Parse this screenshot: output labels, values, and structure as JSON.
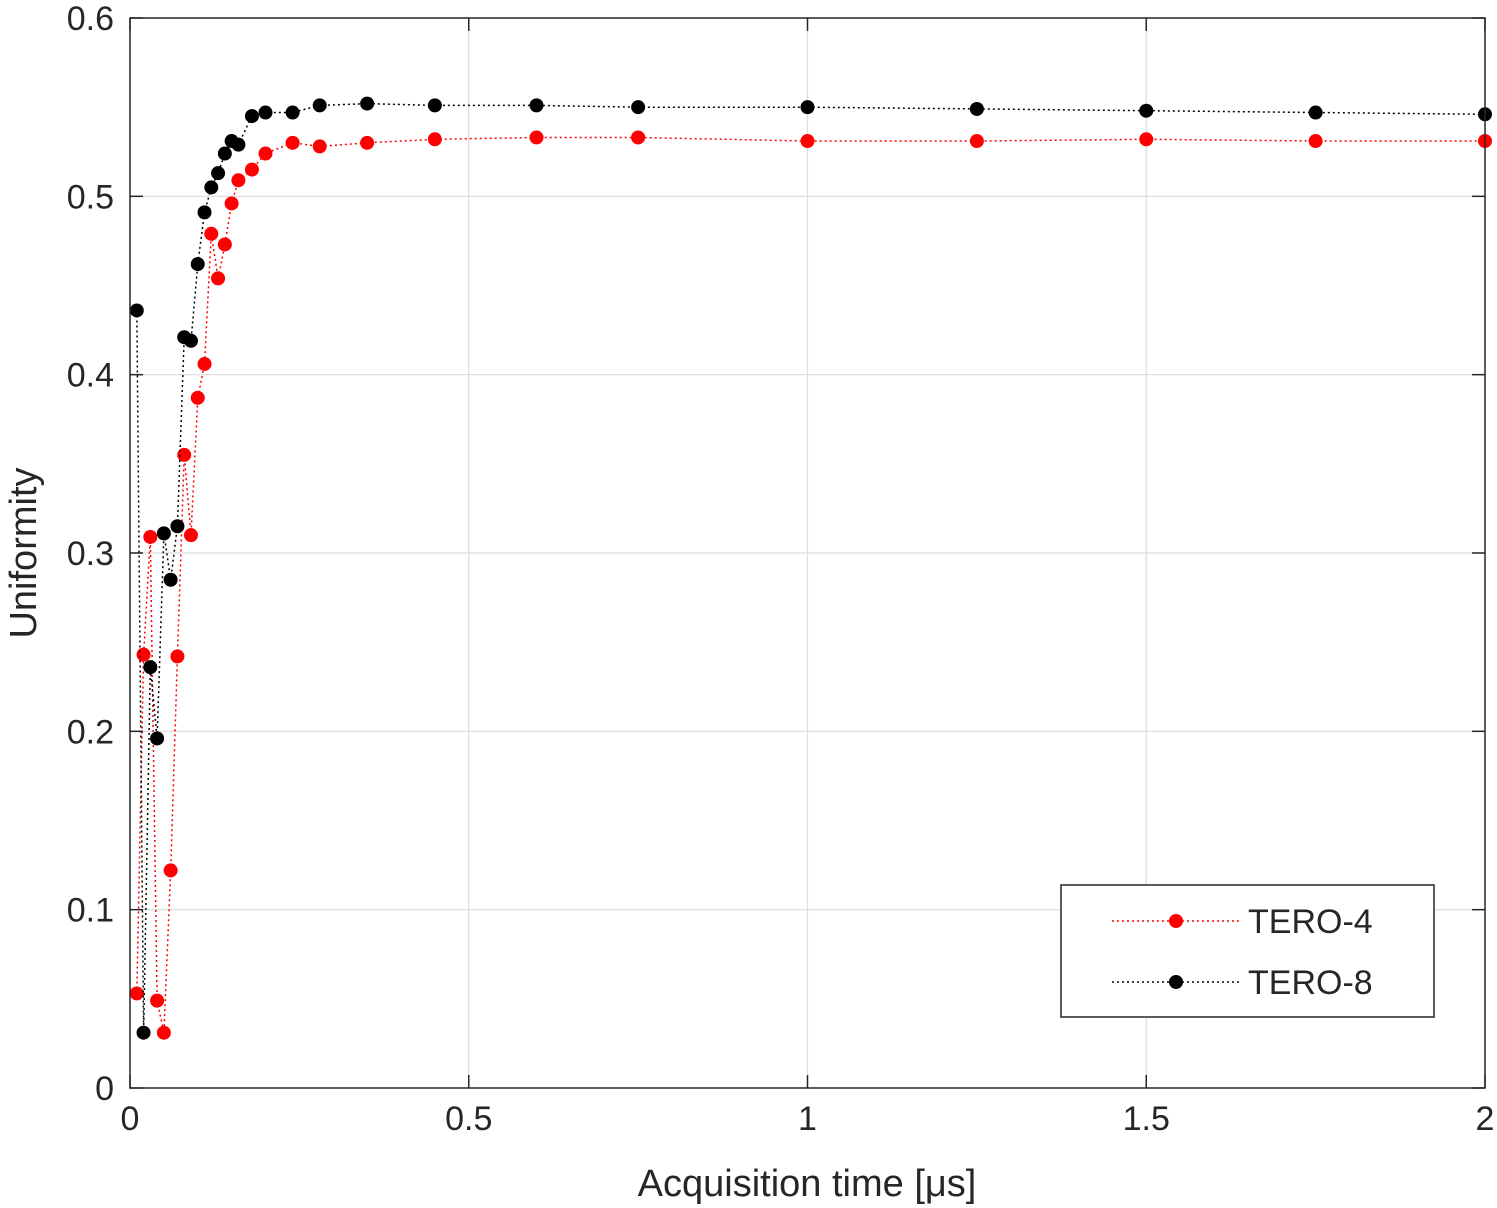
{
  "chart_data": {
    "type": "line",
    "title": "",
    "xlabel": "Acquisition time [μs]",
    "ylabel": "Uniformity",
    "xlim": [
      0,
      2
    ],
    "ylim": [
      0,
      0.6
    ],
    "grid": true,
    "legend_location": "bottom-right",
    "x_ticks": [
      0,
      0.5,
      1,
      1.5,
      2
    ],
    "x_tick_labels": [
      "0",
      "0.5",
      "1",
      "1.5",
      "2"
    ],
    "y_ticks": [
      0,
      0.1,
      0.2,
      0.3,
      0.4,
      0.5,
      0.6
    ],
    "y_tick_labels": [
      "0",
      "0.1",
      "0.2",
      "0.3",
      "0.4",
      "0.5",
      "0.6"
    ],
    "series": [
      {
        "name": "TERO-4",
        "color": "#ff0000",
        "linestyle": "dotted",
        "marker": "circle",
        "x": [
          0.01,
          0.02,
          0.03,
          0.04,
          0.05,
          0.06,
          0.07,
          0.08,
          0.09,
          0.1,
          0.11,
          0.12,
          0.13,
          0.14,
          0.15,
          0.16,
          0.18,
          0.2,
          0.24,
          0.28,
          0.35,
          0.45,
          0.6,
          0.75,
          1.0,
          1.25,
          1.5,
          1.75,
          2.0
        ],
        "y": [
          0.053,
          0.243,
          0.309,
          0.049,
          0.031,
          0.122,
          0.242,
          0.355,
          0.31,
          0.387,
          0.406,
          0.479,
          0.454,
          0.473,
          0.496,
          0.509,
          0.515,
          0.524,
          0.53,
          0.528,
          0.53,
          0.532,
          0.533,
          0.533,
          0.531,
          0.531,
          0.532,
          0.531,
          0.531
        ]
      },
      {
        "name": "TERO-8",
        "color": "#000000",
        "linestyle": "dotted",
        "marker": "circle",
        "x": [
          0.01,
          0.02,
          0.03,
          0.04,
          0.05,
          0.06,
          0.07,
          0.08,
          0.09,
          0.1,
          0.11,
          0.12,
          0.13,
          0.14,
          0.15,
          0.16,
          0.18,
          0.2,
          0.24,
          0.28,
          0.35,
          0.45,
          0.6,
          0.75,
          1.0,
          1.25,
          1.5,
          1.75,
          2.0
        ],
        "y": [
          0.436,
          0.031,
          0.236,
          0.196,
          0.311,
          0.285,
          0.315,
          0.421,
          0.419,
          0.462,
          0.491,
          0.505,
          0.513,
          0.524,
          0.531,
          0.529,
          0.545,
          0.547,
          0.547,
          0.551,
          0.552,
          0.551,
          0.551,
          0.55,
          0.55,
          0.549,
          0.548,
          0.547,
          0.546
        ]
      }
    ]
  }
}
